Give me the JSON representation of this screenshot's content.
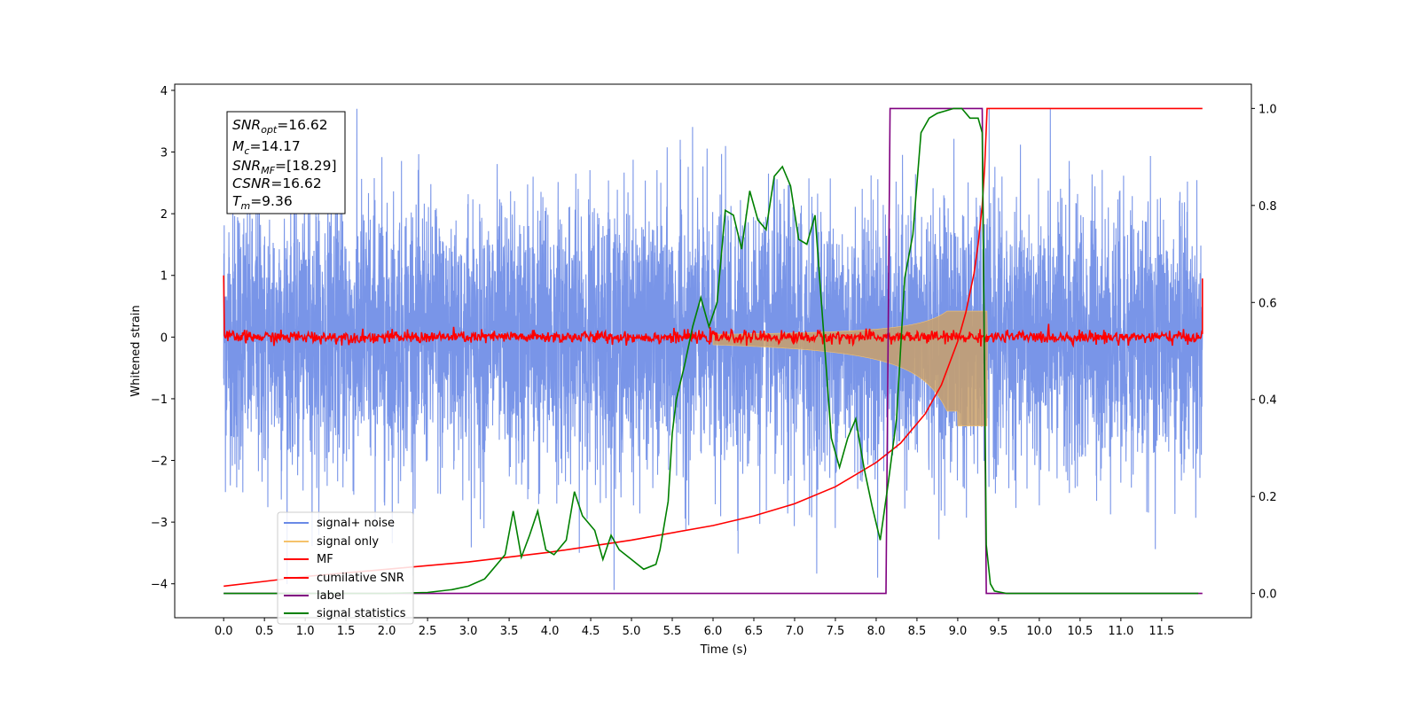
{
  "chart_data": {
    "type": "line",
    "xlabel": "Time (s)",
    "ylabel": "Whitened strain",
    "xlim": [
      -0.6,
      12.6
    ],
    "ylim": [
      -4.55,
      4.1
    ],
    "y2lim": [
      -0.05,
      1.05
    ],
    "x_ticks": [
      "0.0",
      "0.5",
      "1.0",
      "1.5",
      "2.0",
      "2.5",
      "3.0",
      "3.5",
      "4.0",
      "4.5",
      "5.0",
      "5.5",
      "6.0",
      "6.5",
      "7.0",
      "7.5",
      "8.0",
      "8.5",
      "9.0",
      "9.5",
      "10.0",
      "10.5",
      "11.0",
      "11.5"
    ],
    "y_ticks": [
      "4",
      "3",
      "2",
      "1",
      "0",
      "−1",
      "−2",
      "−3",
      "−4"
    ],
    "y2_ticks": [
      "1.0",
      "0.8",
      "0.6",
      "0.4",
      "0.2",
      "0.0"
    ],
    "annotation": [
      {
        "base": "SNR",
        "sub": "opt",
        "value": "=16.62"
      },
      {
        "base": "M",
        "sub": "c",
        "value": "=14.17"
      },
      {
        "base": "SNR",
        "sub": "MF",
        "value": "=[18.29]"
      },
      {
        "base": "CSNR",
        "sub": "",
        "value": "=16.62"
      },
      {
        "base": "T",
        "sub": "m",
        "value": "=9.36"
      }
    ],
    "legend_position": "lower-left",
    "legend": [
      {
        "label": "signal+ noise",
        "color": "#6a8ae6"
      },
      {
        "label": "signal only",
        "color": "#f5c26b"
      },
      {
        "label": "MF",
        "color": "#ff0000"
      },
      {
        "label": "cumilative SNR",
        "color": "#ff0000"
      },
      {
        "label": "label",
        "color": "#800080"
      },
      {
        "label": "signal statistics",
        "color": "#008000"
      }
    ],
    "series": [
      {
        "name": "signal+ noise",
        "axis": "left",
        "color": "#6a8ae6",
        "t_range": [
          0,
          12.0
        ],
        "amplitude_range": [
          -4.1,
          3.7
        ]
      },
      {
        "name": "signal only",
        "axis": "left",
        "color": "#f5c26b",
        "chirp_end": 9.36,
        "peak_amplitude": 1.0
      },
      {
        "name": "MF",
        "axis": "left",
        "color": "#ff0000",
        "baseline": 0.0,
        "start_value": 1.0,
        "end_value": 0.95
      },
      {
        "name": "cumilative SNR",
        "axis": "right",
        "color": "#ff0000",
        "x": [
          0.0,
          0.5,
          1.0,
          2.0,
          3.0,
          4.0,
          5.0,
          6.0,
          6.5,
          7.0,
          7.5,
          8.0,
          8.3,
          8.6,
          8.8,
          9.0,
          9.1,
          9.2,
          9.25,
          9.3,
          9.33,
          9.36,
          12.0
        ],
        "y": [
          0.015,
          0.025,
          0.035,
          0.05,
          0.065,
          0.085,
          0.11,
          0.14,
          0.16,
          0.185,
          0.22,
          0.27,
          0.31,
          0.37,
          0.43,
          0.52,
          0.58,
          0.66,
          0.72,
          0.8,
          0.88,
          1.0,
          1.0
        ]
      },
      {
        "name": "label",
        "axis": "right",
        "color": "#800080",
        "x": [
          0.0,
          8.12,
          8.17,
          9.3,
          9.35,
          12.0
        ],
        "y": [
          0.0,
          0.0,
          1.0,
          1.0,
          0.0,
          0.0
        ]
      },
      {
        "name": "signal statistics",
        "axis": "right",
        "color": "#008000",
        "x": [
          0.0,
          0.5,
          1.0,
          1.5,
          2.0,
          2.5,
          2.8,
          3.0,
          3.2,
          3.3,
          3.45,
          3.55,
          3.65,
          3.75,
          3.85,
          3.95,
          4.05,
          4.2,
          4.3,
          4.4,
          4.55,
          4.65,
          4.75,
          4.85,
          5.0,
          5.15,
          5.3,
          5.35,
          5.45,
          5.5,
          5.55,
          5.65,
          5.75,
          5.85,
          5.95,
          6.05,
          6.15,
          6.25,
          6.35,
          6.45,
          6.55,
          6.65,
          6.75,
          6.85,
          6.95,
          7.05,
          7.15,
          7.25,
          7.35,
          7.45,
          7.55,
          7.65,
          7.75,
          7.85,
          7.95,
          8.05,
          8.15,
          8.25,
          8.35,
          8.45,
          8.55,
          8.65,
          8.75,
          8.85,
          8.95,
          9.05,
          9.15,
          9.25,
          9.3,
          9.35,
          9.4,
          9.45,
          9.6,
          10.0,
          11.0,
          11.95
        ],
        "y": [
          0.0,
          0.0,
          0.0,
          0.0,
          0.0,
          0.002,
          0.008,
          0.015,
          0.03,
          0.05,
          0.08,
          0.17,
          0.075,
          0.12,
          0.17,
          0.09,
          0.08,
          0.11,
          0.21,
          0.16,
          0.13,
          0.07,
          0.12,
          0.09,
          0.07,
          0.05,
          0.06,
          0.09,
          0.19,
          0.33,
          0.4,
          0.47,
          0.55,
          0.61,
          0.55,
          0.6,
          0.79,
          0.78,
          0.71,
          0.83,
          0.77,
          0.75,
          0.86,
          0.88,
          0.84,
          0.73,
          0.72,
          0.78,
          0.55,
          0.32,
          0.26,
          0.32,
          0.36,
          0.26,
          0.18,
          0.11,
          0.23,
          0.36,
          0.65,
          0.74,
          0.95,
          0.98,
          0.99,
          0.995,
          1.0,
          1.0,
          0.98,
          0.98,
          0.95,
          0.1,
          0.02,
          0.005,
          0.0,
          0.0,
          0.0,
          0.0
        ]
      }
    ]
  }
}
